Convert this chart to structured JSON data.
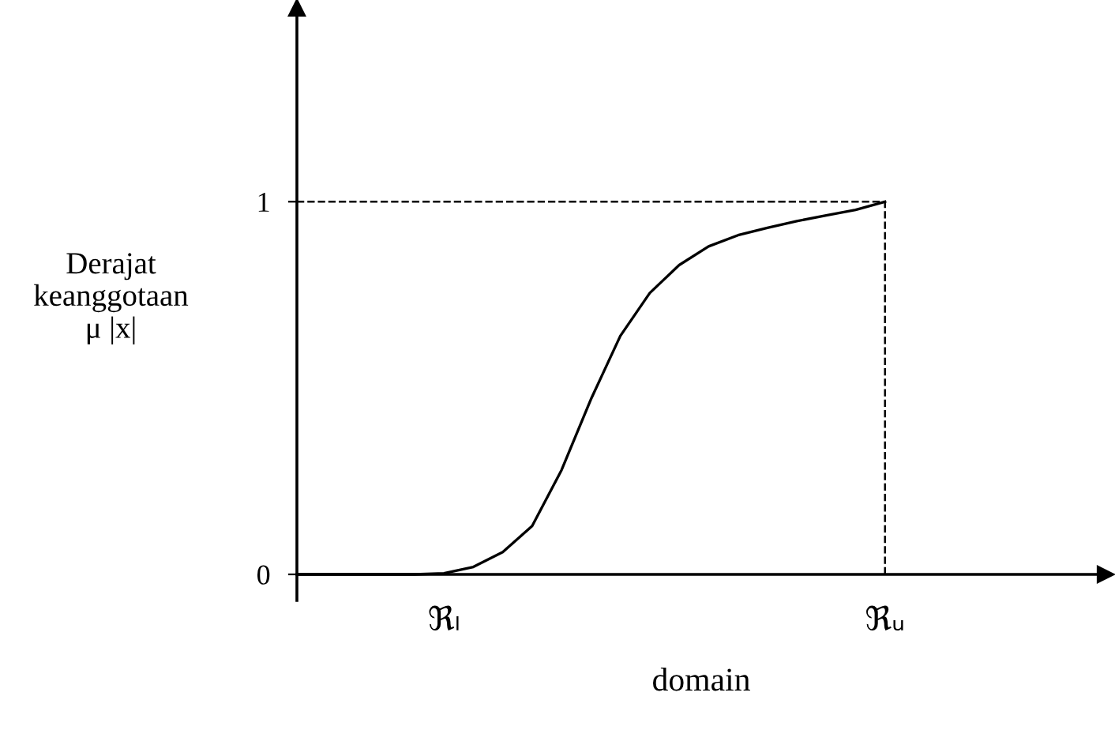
{
  "chart_data": {
    "type": "line",
    "xlabel": "domain",
    "ylabel": "Derajat\nkeanggotaan\nμ |x|",
    "categories": [
      null,
      null,
      null,
      null,
      null,
      "ℜₗ",
      null,
      null,
      null,
      null,
      null,
      null,
      null,
      null,
      null,
      null,
      null,
      null,
      null,
      null,
      "ℜᵤ",
      null,
      null,
      null,
      null,
      null,
      null,
      null
    ],
    "series": [
      {
        "color": "#000000",
        "values": [
          0,
          0,
          0,
          0,
          0,
          0.003,
          0.02,
          0.06,
          0.13,
          0.28,
          0.47,
          0.64,
          0.755,
          0.83,
          0.88,
          0.91,
          0.93,
          0.948,
          0.963,
          0.978,
          1,
          null,
          null,
          null,
          null,
          null,
          null,
          null
        ]
      }
    ],
    "ylim": [
      -0.07,
      1.52
    ],
    "yticks": [
      0,
      1
    ],
    "ref_lines": [
      {
        "axis": "y",
        "value": 1,
        "color": "#000000",
        "line_style": "dashed"
      },
      {
        "axis": "x",
        "value": "ℜᵤ",
        "color": "#000000",
        "line_style": "dashed"
      }
    ],
    "grid": false,
    "marker": "none",
    "line_style": "solid"
  }
}
